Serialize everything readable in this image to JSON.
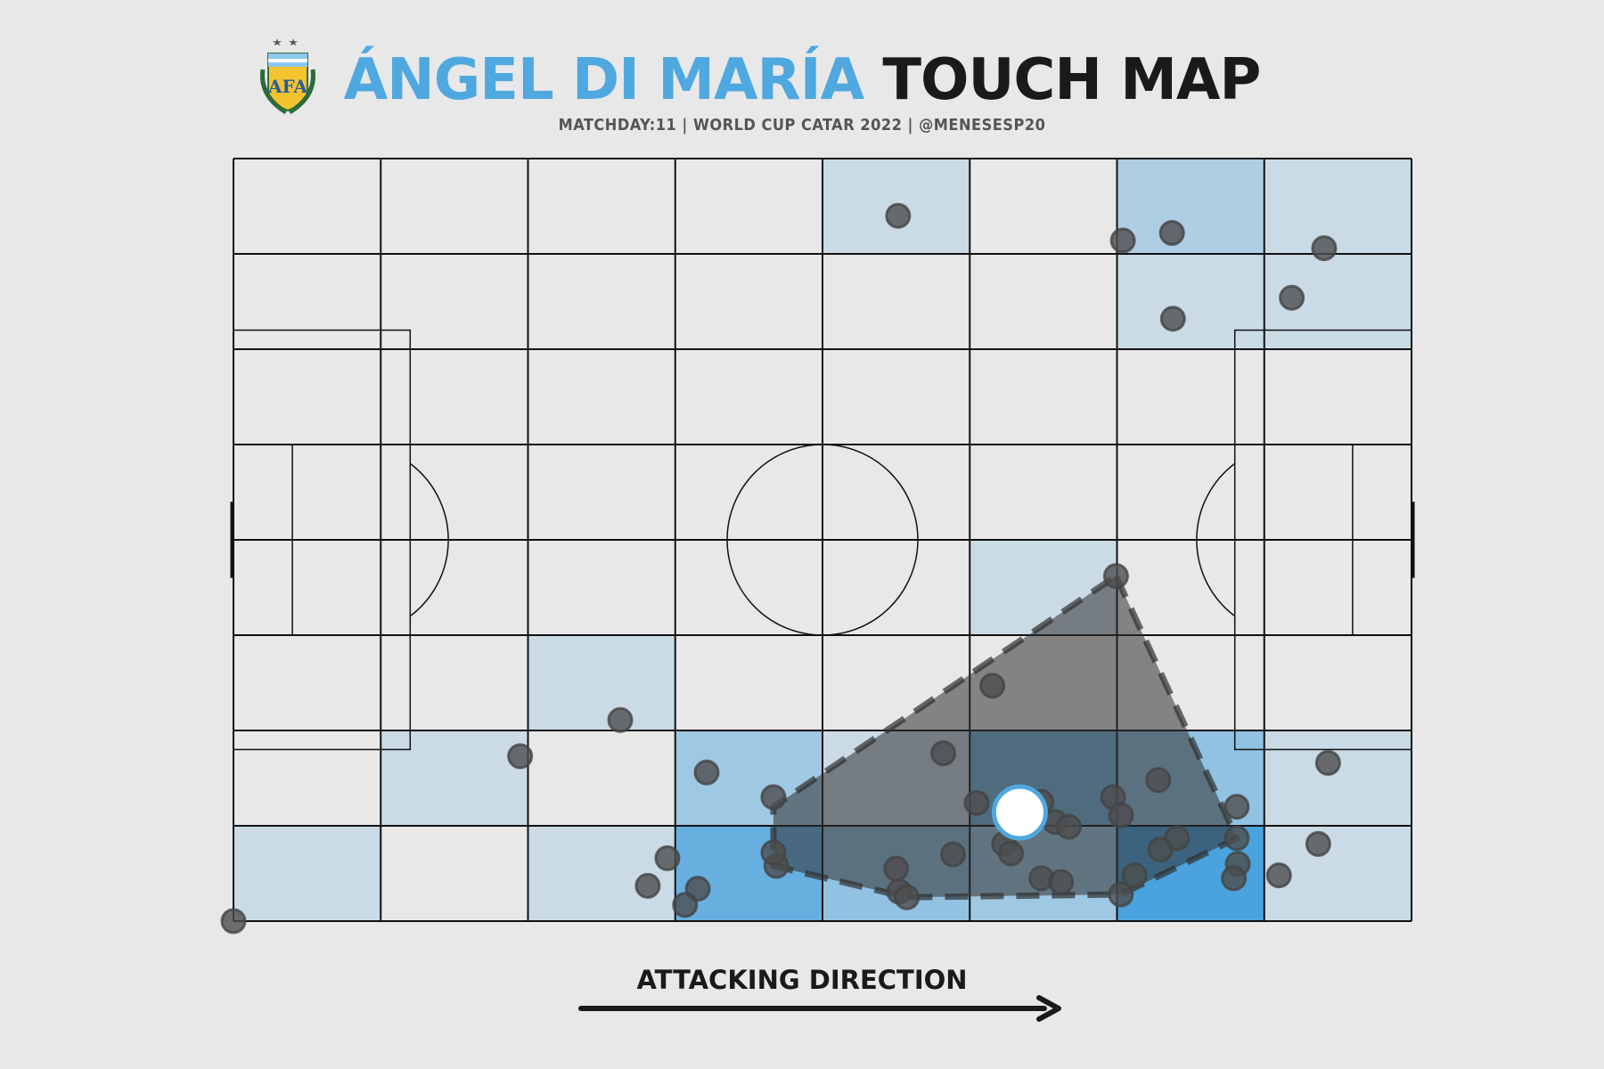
{
  "header": {
    "title_highlight": "ÁNGEL DI MARÍA",
    "title_rest": "TOUCH MAP",
    "subtitle": "MATCHDAY:11 | WORLD CUP CATAR 2022 | @MENESESP20"
  },
  "footer": {
    "direction_label": "ATTACKING DIRECTION"
  },
  "logo": {
    "text": "AFA",
    "icon": "afa-crest-icon"
  },
  "colors": {
    "background": "#e8e8e8",
    "accent": "#4fa8df",
    "dark": "#1a1a1a",
    "touch": "#4d4d4d",
    "hull": "#2f2f2f",
    "centroid": "#ffffff",
    "centroid_edge": "#4fa8df"
  },
  "chart_data": {
    "type": "scatter",
    "pitch": {
      "length": 120,
      "width": 80,
      "zones_x": 8,
      "zones_y": 8
    },
    "heatmap_counts": [
      [
        0,
        0,
        0,
        0,
        1,
        0,
        3,
        1
      ],
      [
        0,
        0,
        0,
        0,
        0,
        0,
        1,
        1
      ],
      [
        0,
        0,
        0,
        0,
        0,
        0,
        0,
        0
      ],
      [
        0,
        0,
        0,
        0,
        0,
        0,
        0,
        0
      ],
      [
        0,
        0,
        0,
        0,
        0,
        1,
        0,
        0
      ],
      [
        0,
        0,
        1,
        0,
        0,
        0,
        0,
        0
      ],
      [
        0,
        1,
        0,
        4,
        1,
        7,
        5,
        1
      ],
      [
        1,
        0,
        1,
        8,
        5,
        4,
        10,
        1
      ]
    ],
    "touches": [
      [
        67.7,
        6.0
      ],
      [
        90.6,
        8.6
      ],
      [
        95.6,
        7.8
      ],
      [
        111.1,
        9.4
      ],
      [
        95.7,
        16.8
      ],
      [
        107.8,
        14.6
      ],
      [
        89.9,
        43.8
      ],
      [
        77.3,
        55.3
      ],
      [
        39.4,
        58.9
      ],
      [
        29.2,
        62.7
      ],
      [
        48.2,
        64.4
      ],
      [
        72.3,
        62.4
      ],
      [
        55.0,
        67.0
      ],
      [
        75.7,
        67.6
      ],
      [
        82.3,
        67.5
      ],
      [
        83.7,
        69.6
      ],
      [
        89.6,
        67.0
      ],
      [
        94.2,
        65.2
      ],
      [
        96.1,
        71.3
      ],
      [
        90.4,
        68.9
      ],
      [
        85.1,
        70.1
      ],
      [
        78.5,
        71.9
      ],
      [
        102.2,
        68.0
      ],
      [
        111.5,
        63.4
      ],
      [
        55.3,
        74.2
      ],
      [
        55.0,
        72.8
      ],
      [
        47.3,
        76.6
      ],
      [
        46.0,
        78.3
      ],
      [
        42.2,
        76.3
      ],
      [
        44.2,
        73.4
      ],
      [
        67.5,
        74.5
      ],
      [
        67.8,
        76.9
      ],
      [
        73.3,
        73.0
      ],
      [
        79.2,
        72.9
      ],
      [
        91.8,
        75.2
      ],
      [
        94.4,
        72.5
      ],
      [
        102.3,
        74.0
      ],
      [
        101.9,
        75.5
      ],
      [
        102.2,
        71.3
      ],
      [
        82.3,
        75.5
      ],
      [
        84.3,
        75.9
      ],
      [
        68.6,
        77.5
      ],
      [
        90.4,
        77.2
      ],
      [
        106.5,
        75.2
      ],
      [
        110.5,
        71.9
      ],
      [
        0.0,
        80.0
      ]
    ],
    "hull": [
      [
        89.9,
        43.8
      ],
      [
        102.2,
        71.3
      ],
      [
        90.4,
        77.2
      ],
      [
        68.6,
        77.5
      ],
      [
        55.0,
        74.2
      ],
      [
        55.0,
        68.0
      ]
    ],
    "centroid": [
      80.1,
      68.6
    ],
    "attacking_direction": "left-to-right"
  }
}
